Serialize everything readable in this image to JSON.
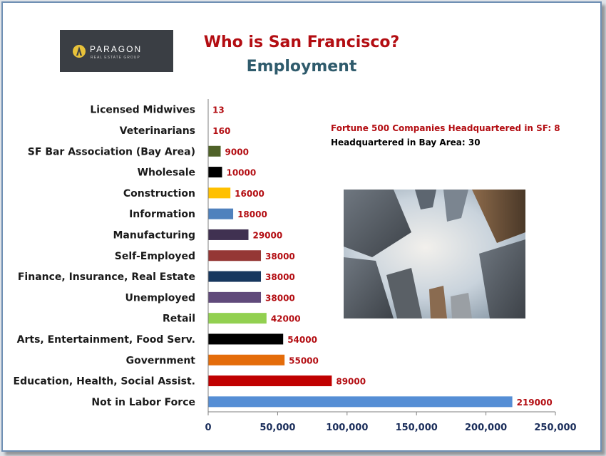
{
  "logo": {
    "name": "PARAGON",
    "sub": "REAL ESTATE GROUP"
  },
  "notes": {
    "fortune500": "Fortune 500 Companies Headquartered in SF: 8",
    "bayarea": "Headquartered in Bay Area: 30"
  },
  "chart_data": {
    "type": "bar",
    "orientation": "horizontal",
    "title": "Who is San Francisco?",
    "subtitle": "Employment",
    "categories": [
      "Licensed Midwives",
      "Veterinarians",
      "SF Bar Association (Bay Area)",
      "Wholesale",
      "Construction",
      "Information",
      "Manufacturing",
      "Self-Employed",
      "Finance, Insurance, Real Estate",
      "Unemployed",
      "Retail",
      "Arts, Entertainment, Food Serv.",
      "Government",
      "Education, Health, Social Assist.",
      "Not in Labor Force"
    ],
    "values": [
      13,
      160,
      9000,
      10000,
      16000,
      18000,
      29000,
      38000,
      38000,
      38000,
      42000,
      54000,
      55000,
      89000,
      219000
    ],
    "value_labels": [
      "13",
      "160",
      "9000",
      "10000",
      "16000",
      "18000",
      "29000",
      "38000",
      "38000",
      "38000",
      "42000",
      "54000",
      "55000",
      "89000",
      "219000"
    ],
    "colors": [
      "#c0504d",
      "#c0504d",
      "#4f6228",
      "#000000",
      "#ffc000",
      "#4f81bd",
      "#403151",
      "#953735",
      "#17375e",
      "#604a7b",
      "#92d050",
      "#000000",
      "#e46c0a",
      "#c00000",
      "#558ed5"
    ],
    "xlim": [
      0,
      250000
    ],
    "xticks": [
      0,
      50000,
      100000,
      150000,
      200000,
      250000
    ],
    "xtick_labels": [
      "0",
      "50,000",
      "100,000",
      "150,000",
      "200,000",
      "250,000"
    ],
    "xlabel": "",
    "ylabel": "",
    "grid": false,
    "legend": "none",
    "value_label_color": "#b30d12",
    "axis_color": "#1a2d5a"
  }
}
